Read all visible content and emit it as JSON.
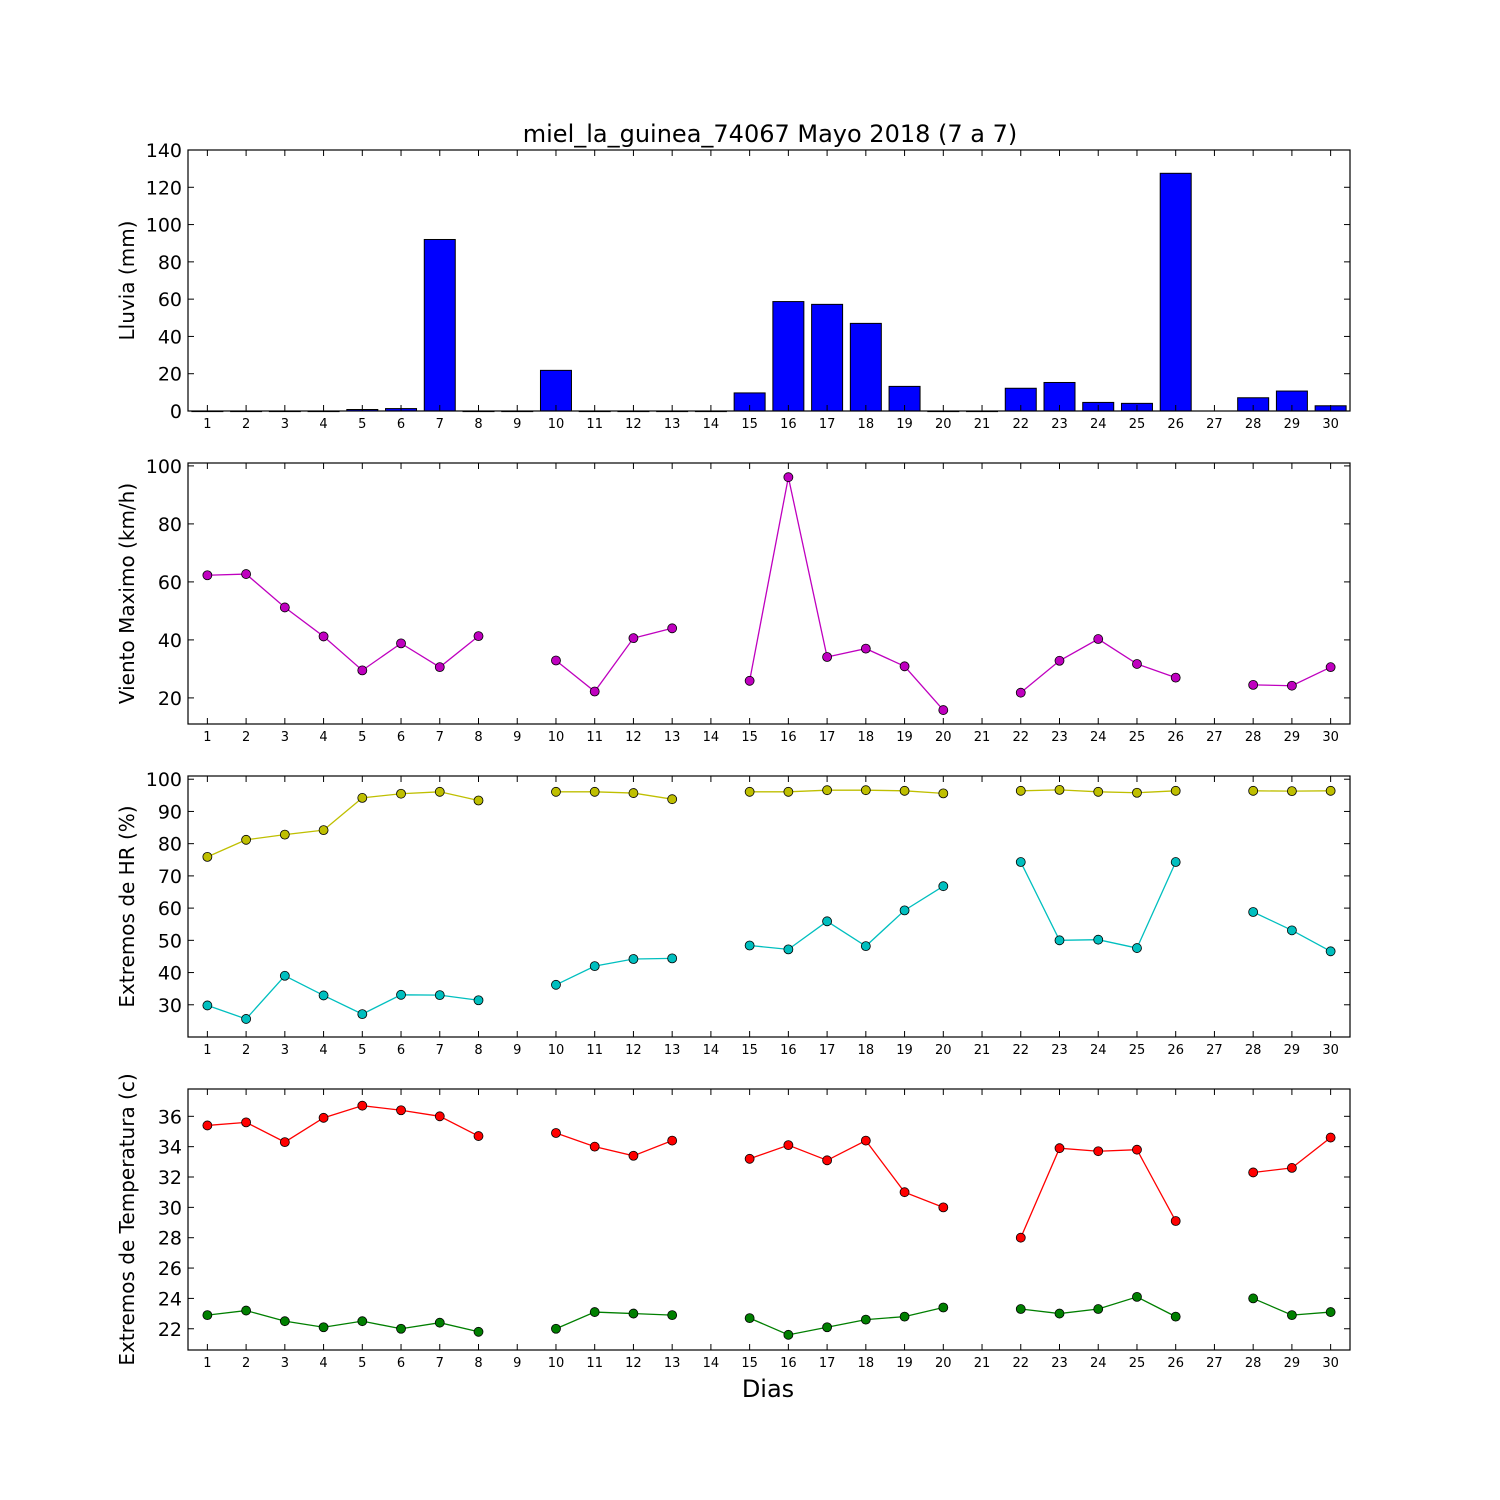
{
  "figure": {
    "title": "miel_la_guinea_74067 Mayo 2018  (7 a 7)",
    "xlabel": "Dias"
  },
  "chart_data": [
    {
      "type": "bar",
      "id": "lluvia",
      "ylabel": "Lluvia (mm)",
      "ylim": [
        0,
        140
      ],
      "yticks": [
        0,
        20,
        40,
        60,
        80,
        100,
        120,
        140
      ],
      "xticks": [
        1,
        2,
        3,
        4,
        5,
        6,
        7,
        8,
        9,
        10,
        11,
        12,
        13,
        14,
        15,
        16,
        17,
        18,
        19,
        20,
        21,
        22,
        23,
        24,
        25,
        26,
        27,
        28,
        29,
        30
      ],
      "bar_color": "#0000ff",
      "series": [
        {
          "x": [
            1,
            2,
            3,
            4,
            5,
            6,
            7,
            8,
            9,
            10,
            11,
            12,
            13,
            14,
            15,
            16,
            17,
            18,
            19,
            20,
            21,
            22,
            23,
            24,
            25,
            26,
            28,
            29,
            30
          ],
          "values": [
            0,
            0,
            0,
            0,
            0.8,
            1.3,
            92,
            0,
            0,
            21.8,
            0,
            0,
            0,
            0,
            9.7,
            58.7,
            57.2,
            47,
            13.2,
            0,
            0,
            12.2,
            15.3,
            4.6,
            4.1,
            127.5,
            7.1,
            10.7,
            2.8
          ]
        }
      ]
    },
    {
      "type": "line",
      "id": "viento",
      "ylabel": "Viento Maximo (km/h)",
      "ylim": [
        11,
        101
      ],
      "yticks": [
        20,
        40,
        60,
        80,
        100
      ],
      "xticks": [
        1,
        2,
        3,
        4,
        5,
        6,
        7,
        8,
        9,
        10,
        11,
        12,
        13,
        14,
        15,
        16,
        17,
        18,
        19,
        20,
        21,
        22,
        23,
        24,
        25,
        26,
        27,
        28,
        29,
        30
      ],
      "series": [
        {
          "color": "#bf00bf",
          "x": [
            1,
            2,
            3,
            4,
            5,
            6,
            7,
            8,
            9,
            10,
            11,
            12,
            13,
            14,
            15,
            16,
            17,
            18,
            19,
            20,
            21,
            22,
            23,
            24,
            25,
            26,
            27,
            28,
            29,
            30
          ],
          "values": [
            62.3,
            62.7,
            51.2,
            41.2,
            29.5,
            38.8,
            30.6,
            41.3,
            null,
            32.9,
            22.2,
            40.6,
            44,
            null,
            25.9,
            96.1,
            34.1,
            37,
            30.9,
            15.8,
            null,
            21.8,
            32.8,
            40.3,
            31.7,
            27,
            null,
            24.5,
            24.2,
            30.6
          ]
        }
      ]
    },
    {
      "type": "line",
      "id": "humedad",
      "ylabel": "Extremos de HR (%)",
      "ylim": [
        20,
        101
      ],
      "yticks": [
        30,
        40,
        50,
        60,
        70,
        80,
        90,
        100
      ],
      "xticks": [
        1,
        2,
        3,
        4,
        5,
        6,
        7,
        8,
        9,
        10,
        11,
        12,
        13,
        14,
        15,
        16,
        17,
        18,
        19,
        20,
        21,
        22,
        23,
        24,
        25,
        26,
        27,
        28,
        29,
        30
      ],
      "series": [
        {
          "color": "#bfbf00",
          "x": [
            1,
            2,
            3,
            4,
            5,
            6,
            7,
            8,
            9,
            10,
            11,
            12,
            13,
            14,
            15,
            16,
            17,
            18,
            19,
            20,
            21,
            22,
            23,
            24,
            25,
            26,
            27,
            28,
            29,
            30
          ],
          "values": [
            75.9,
            81.2,
            82.8,
            84.2,
            94.2,
            95.5,
            96.1,
            93.4,
            null,
            96.1,
            96.1,
            95.7,
            93.8,
            null,
            96.1,
            96.1,
            96.6,
            96.6,
            96.4,
            95.6,
            null,
            96.4,
            96.7,
            96.1,
            95.8,
            96.4,
            null,
            96.4,
            96.3,
            96.4
          ]
        },
        {
          "color": "#00bfbf",
          "x": [
            1,
            2,
            3,
            4,
            5,
            6,
            7,
            8,
            9,
            10,
            11,
            12,
            13,
            14,
            15,
            16,
            17,
            18,
            19,
            20,
            21,
            22,
            23,
            24,
            25,
            26,
            27,
            28,
            29,
            30
          ],
          "values": [
            29.8,
            25.6,
            39,
            32.9,
            27.1,
            33.1,
            33,
            31.4,
            null,
            36.2,
            42,
            44.2,
            44.4,
            null,
            48.4,
            47.2,
            55.9,
            48.2,
            59.3,
            66.8,
            null,
            74.3,
            50,
            50.2,
            47.6,
            74.3,
            null,
            58.8,
            53.1,
            46.6
          ]
        }
      ]
    },
    {
      "type": "line",
      "id": "temperatura",
      "ylabel": "Extremos de Temperatura (c)",
      "ylim": [
        20.6,
        37.8
      ],
      "yticks": [
        22,
        24,
        26,
        28,
        30,
        32,
        34,
        36
      ],
      "xticks": [
        1,
        2,
        3,
        4,
        5,
        6,
        7,
        8,
        9,
        10,
        11,
        12,
        13,
        14,
        15,
        16,
        17,
        18,
        19,
        20,
        21,
        22,
        23,
        24,
        25,
        26,
        27,
        28,
        29,
        30
      ],
      "series": [
        {
          "color": "#ff0000",
          "x": [
            1,
            2,
            3,
            4,
            5,
            6,
            7,
            8,
            9,
            10,
            11,
            12,
            13,
            14,
            15,
            16,
            17,
            18,
            19,
            20,
            21,
            22,
            23,
            24,
            25,
            26,
            27,
            28,
            29,
            30
          ],
          "values": [
            35.4,
            35.6,
            34.3,
            35.9,
            36.7,
            36.4,
            36,
            34.7,
            null,
            34.9,
            34,
            33.4,
            34.4,
            null,
            33.2,
            34.1,
            33.1,
            34.4,
            31,
            30,
            null,
            28,
            33.9,
            33.7,
            33.8,
            29.1,
            null,
            32.3,
            32.6,
            34.6
          ]
        },
        {
          "color": "#007f00",
          "x": [
            1,
            2,
            3,
            4,
            5,
            6,
            7,
            8,
            9,
            10,
            11,
            12,
            13,
            14,
            15,
            16,
            17,
            18,
            19,
            20,
            21,
            22,
            23,
            24,
            25,
            26,
            27,
            28,
            29,
            30
          ],
          "values": [
            22.9,
            23.2,
            22.5,
            22.1,
            22.5,
            22,
            22.4,
            21.8,
            null,
            22,
            23.1,
            23,
            22.9,
            null,
            22.7,
            21.6,
            22.1,
            22.6,
            22.8,
            23.4,
            null,
            23.3,
            23,
            23.3,
            24.1,
            22.8,
            null,
            24,
            22.9,
            23.1
          ]
        }
      ]
    }
  ]
}
